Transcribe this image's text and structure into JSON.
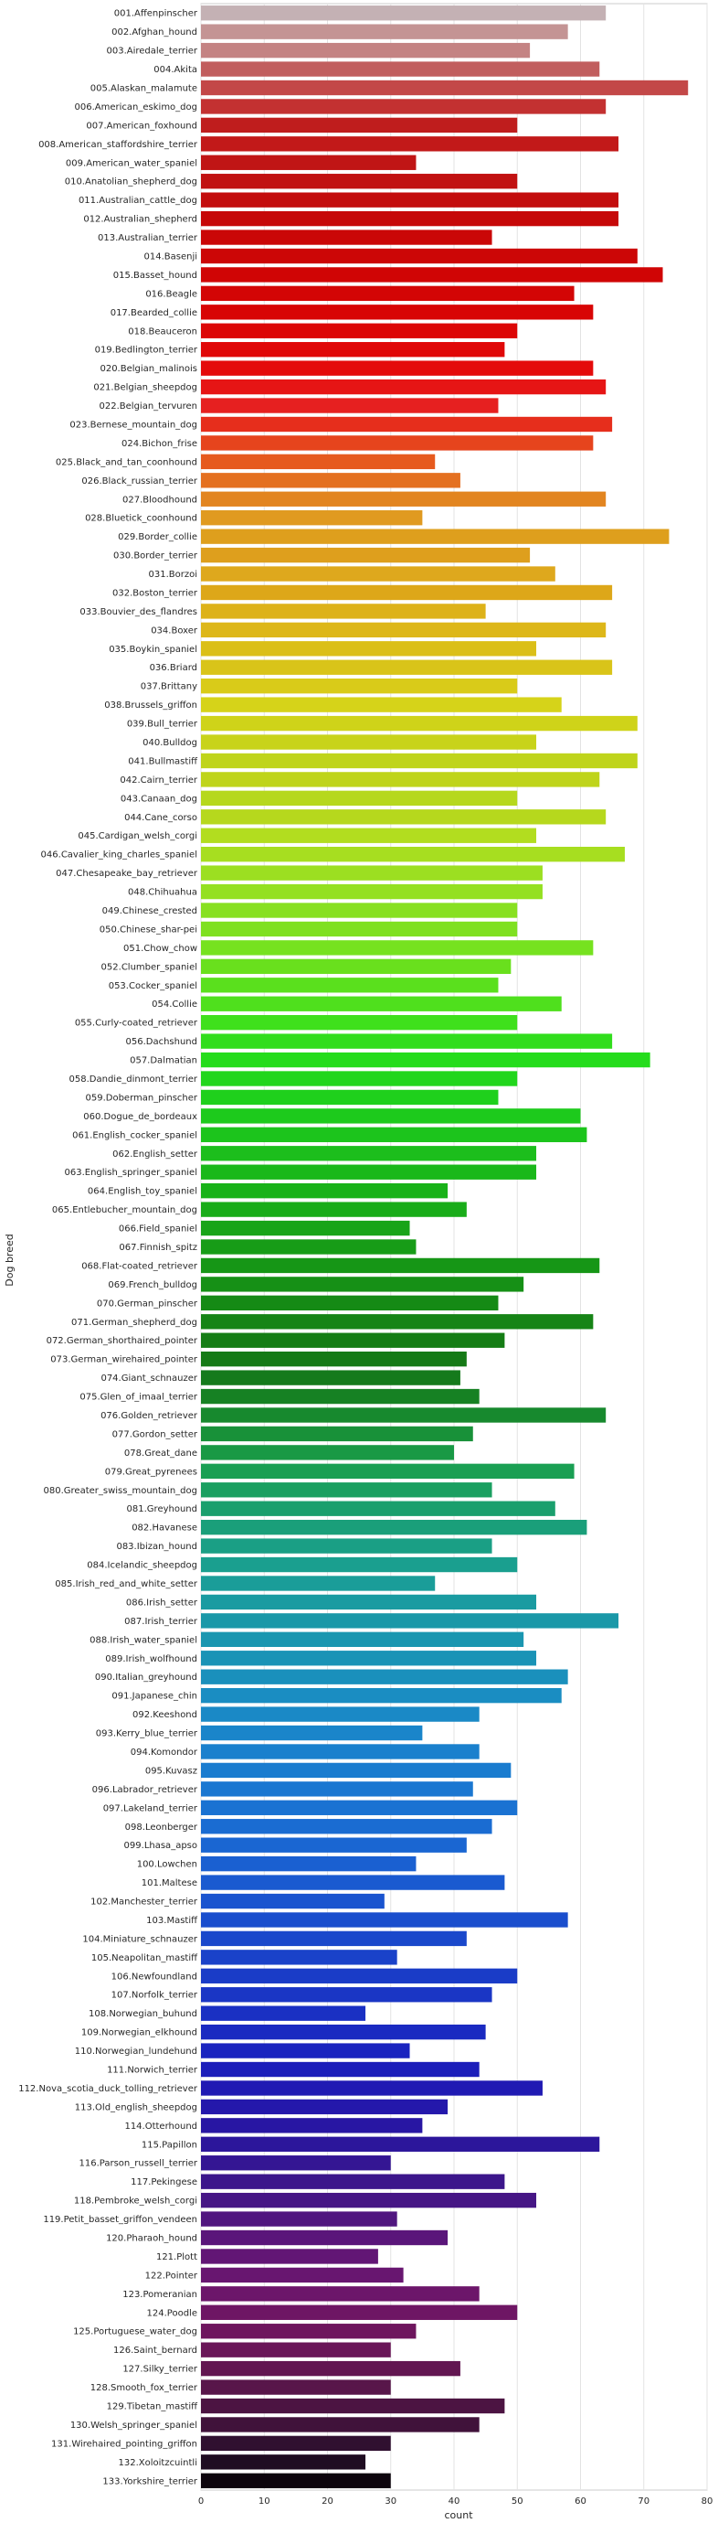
{
  "chart_data": {
    "type": "bar",
    "orientation": "horizontal",
    "xlabel": "count",
    "ylabel": "Dog breed",
    "xlim": [
      0,
      80
    ],
    "xticks": [
      0,
      10,
      20,
      30,
      40,
      50,
      60,
      70,
      80
    ],
    "grid": "vertical",
    "colormap": "gist_ncar-like rainbow, pink to black (top to bottom)",
    "categories": [
      "001.Affenpinscher",
      "002.Afghan_hound",
      "003.Airedale_terrier",
      "004.Akita",
      "005.Alaskan_malamute",
      "006.American_eskimo_dog",
      "007.American_foxhound",
      "008.American_staffordshire_terrier",
      "009.American_water_spaniel",
      "010.Anatolian_shepherd_dog",
      "011.Australian_cattle_dog",
      "012.Australian_shepherd",
      "013.Australian_terrier",
      "014.Basenji",
      "015.Basset_hound",
      "016.Beagle",
      "017.Bearded_collie",
      "018.Beauceron",
      "019.Bedlington_terrier",
      "020.Belgian_malinois",
      "021.Belgian_sheepdog",
      "022.Belgian_tervuren",
      "023.Bernese_mountain_dog",
      "024.Bichon_frise",
      "025.Black_and_tan_coonhound",
      "026.Black_russian_terrier",
      "027.Bloodhound",
      "028.Bluetick_coonhound",
      "029.Border_collie",
      "030.Border_terrier",
      "031.Borzoi",
      "032.Boston_terrier",
      "033.Bouvier_des_flandres",
      "034.Boxer",
      "035.Boykin_spaniel",
      "036.Briard",
      "037.Brittany",
      "038.Brussels_griffon",
      "039.Bull_terrier",
      "040.Bulldog",
      "041.Bullmastiff",
      "042.Cairn_terrier",
      "043.Canaan_dog",
      "044.Cane_corso",
      "045.Cardigan_welsh_corgi",
      "046.Cavalier_king_charles_spaniel",
      "047.Chesapeake_bay_retriever",
      "048.Chihuahua",
      "049.Chinese_crested",
      "050.Chinese_shar-pei",
      "051.Chow_chow",
      "052.Clumber_spaniel",
      "053.Cocker_spaniel",
      "054.Collie",
      "055.Curly-coated_retriever",
      "056.Dachshund",
      "057.Dalmatian",
      "058.Dandie_dinmont_terrier",
      "059.Doberman_pinscher",
      "060.Dogue_de_bordeaux",
      "061.English_cocker_spaniel",
      "062.English_setter",
      "063.English_springer_spaniel",
      "064.English_toy_spaniel",
      "065.Entlebucher_mountain_dog",
      "066.Field_spaniel",
      "067.Finnish_spitz",
      "068.Flat-coated_retriever",
      "069.French_bulldog",
      "070.German_pinscher",
      "071.German_shepherd_dog",
      "072.German_shorthaired_pointer",
      "073.German_wirehaired_pointer",
      "074.Giant_schnauzer",
      "075.Glen_of_imaal_terrier",
      "076.Golden_retriever",
      "077.Gordon_setter",
      "078.Great_dane",
      "079.Great_pyrenees",
      "080.Greater_swiss_mountain_dog",
      "081.Greyhound",
      "082.Havanese",
      "083.Ibizan_hound",
      "084.Icelandic_sheepdog",
      "085.Irish_red_and_white_setter",
      "086.Irish_setter",
      "087.Irish_terrier",
      "088.Irish_water_spaniel",
      "089.Irish_wolfhound",
      "090.Italian_greyhound",
      "091.Japanese_chin",
      "092.Keeshond",
      "093.Kerry_blue_terrier",
      "094.Komondor",
      "095.Kuvasz",
      "096.Labrador_retriever",
      "097.Lakeland_terrier",
      "098.Leonberger",
      "099.Lhasa_apso",
      "100.Lowchen",
      "101.Maltese",
      "102.Manchester_terrier",
      "103.Mastiff",
      "104.Miniature_schnauzer",
      "105.Neapolitan_mastiff",
      "106.Newfoundland",
      "107.Norfolk_terrier",
      "108.Norwegian_buhund",
      "109.Norwegian_elkhound",
      "110.Norwegian_lundehund",
      "111.Norwich_terrier",
      "112.Nova_scotia_duck_tolling_retriever",
      "113.Old_english_sheepdog",
      "114.Otterhound",
      "115.Papillon",
      "116.Parson_russell_terrier",
      "117.Pekingese",
      "118.Pembroke_welsh_corgi",
      "119.Petit_basset_griffon_vendeen",
      "120.Pharaoh_hound",
      "121.Plott",
      "122.Pointer",
      "123.Pomeranian",
      "124.Poodle",
      "125.Portuguese_water_dog",
      "126.Saint_bernard",
      "127.Silky_terrier",
      "128.Smooth_fox_terrier",
      "129.Tibetan_mastiff",
      "130.Welsh_springer_spaniel",
      "131.Wirehaired_pointing_griffon",
      "132.Xoloitzcuintli",
      "133.Yorkshire_terrier"
    ],
    "values": [
      64,
      58,
      52,
      63,
      77,
      64,
      50,
      66,
      34,
      50,
      66,
      66,
      46,
      69,
      73,
      59,
      62,
      50,
      48,
      62,
      64,
      47,
      65,
      62,
      37,
      41,
      64,
      35,
      74,
      52,
      56,
      65,
      45,
      64,
      53,
      65,
      50,
      57,
      69,
      53,
      69,
      63,
      50,
      64,
      53,
      67,
      54,
      54,
      50,
      50,
      62,
      49,
      47,
      57,
      50,
      65,
      71,
      50,
      47,
      60,
      61,
      53,
      53,
      39,
      42,
      33,
      34,
      63,
      51,
      47,
      62,
      48,
      42,
      41,
      44,
      64,
      43,
      40,
      59,
      46,
      56,
      61,
      46,
      50,
      37,
      53,
      66,
      51,
      53,
      58,
      57,
      44,
      35,
      44,
      49,
      43,
      50,
      46,
      42,
      34,
      48,
      29,
      58,
      42,
      31,
      50,
      46,
      26,
      45,
      33,
      44,
      54,
      39,
      35,
      63,
      30,
      48,
      53,
      31,
      39,
      28,
      32,
      44,
      50,
      34,
      30,
      41,
      30,
      48,
      44,
      30,
      26,
      30
    ],
    "colors": [
      "#c4b1b4",
      "#c49494",
      "#c48383",
      "#c15e5e",
      "#c34848",
      "#c33131",
      "#bf1d1d",
      "#c21919",
      "#c01515",
      "#c11111",
      "#c30d0d",
      "#c60808",
      "#ca0707",
      "#cc0606",
      "#d00505",
      "#d30505",
      "#d80505",
      "#dc0606",
      "#e00808",
      "#e40b0b",
      "#e61515",
      "#e62020",
      "#e62e1c",
      "#e6441d",
      "#e65a1e",
      "#e47020",
      "#e28520",
      "#e09a20",
      "#de9f1d",
      "#de9f1d",
      "#dea81d",
      "#dda719",
      "#ddb219",
      "#ddb719",
      "#dbbf18",
      "#d9c419",
      "#d9cb19",
      "#d6d319",
      "#cfd319",
      "#c8d31a",
      "#bfd41b",
      "#bfd41b",
      "#b6d81d",
      "#b6d81d",
      "#b2dd1f",
      "#a7de20",
      "#9cdf21",
      "#94e021",
      "#88e021",
      "#7fe021",
      "#76e21f",
      "#69e01d",
      "#5ae01d",
      "#4fe01d",
      "#3fe01c",
      "#31dd1c",
      "#25dc1c",
      "#21d61c",
      "#1fd01c",
      "#1dca1c",
      "#1cc41c",
      "#1cbe1c",
      "#1ab81a",
      "#19b219",
      "#19ac19",
      "#18a418",
      "#179c17",
      "#169616",
      "#169016",
      "#158a15",
      "#168416",
      "#157d15",
      "#157a16",
      "#157a1c",
      "#168123",
      "#17892e",
      "#189139",
      "#199945",
      "#1a9f53",
      "#1a9f60",
      "#1a9f6d",
      "#1a9f7a",
      "#1a9f85",
      "#1a9f8f",
      "#1a9d99",
      "#1a9ba1",
      "#1a98a8",
      "#1a96b0",
      "#1a93b6",
      "#1a90bc",
      "#1a8dc2",
      "#1a89c6",
      "#1a85ca",
      "#1a80cd",
      "#1a7ccf",
      "#1a77d1",
      "#1a72d2",
      "#1a6cd2",
      "#1a66d2",
      "#1a60d1",
      "#1a5ad0",
      "#1a54cf",
      "#1a4ecd",
      "#1a48cb",
      "#1a42c9",
      "#1a3cc7",
      "#1a36c5",
      "#1a30c3",
      "#1a2ac1",
      "#1a24bf",
      "#1c1eba",
      "#201ab3",
      "#2418ab",
      "#2816a3",
      "#2c169b",
      "#341693",
      "#3c168b",
      "#461685",
      "#50167f",
      "#5a167a",
      "#621675",
      "#681670",
      "#6c166a",
      "#6e1664",
      "#6e165e",
      "#6a1658",
      "#621651",
      "#58164a",
      "#4c1442",
      "#40123a",
      "#301030",
      "#200d22",
      "#0d050d"
    ]
  }
}
